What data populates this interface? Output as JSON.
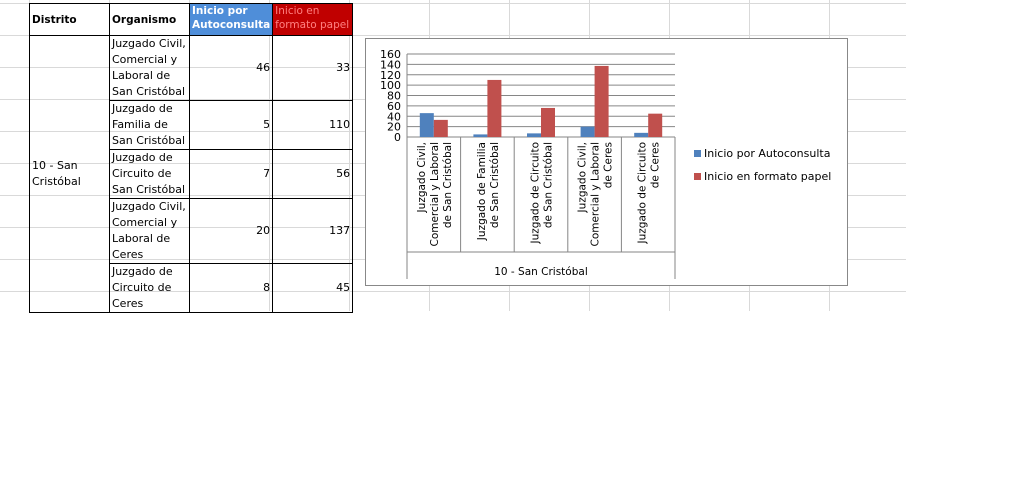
{
  "table": {
    "headers": {
      "distrito": "Distrito",
      "organismo": "Organismo",
      "auto": "Inicio por Autoconsulta",
      "papel": "Inicio en formato papel"
    },
    "distrito_value": "10 - San Cristóbal",
    "rows": [
      {
        "organismo": "Juzgado Civil, Comercial y Laboral de San Cristóbal",
        "auto": "46",
        "papel": "33"
      },
      {
        "organismo": "Juzgado de Familia de San Cristóbal",
        "auto": "5",
        "papel": "110"
      },
      {
        "organismo": "Juzgado de Circuito de San Cristóbal",
        "auto": "7",
        "papel": "56"
      },
      {
        "organismo": "Juzgado Civil, Comercial y Laboral de Ceres",
        "auto": "20",
        "papel": "137"
      },
      {
        "organismo": "Juzgado de Circuito de Ceres",
        "auto": "8",
        "papel": "45"
      }
    ]
  },
  "colors": {
    "auto": "#4f81bd",
    "papel": "#c0504d",
    "header_auto": "#4f8ed9",
    "header_papel": "#c00000"
  },
  "chart_data": {
    "type": "bar",
    "categories": [
      "Juzgado Civil, Comercial y Laboral de San Cristóbal",
      "Juzgado de Familia de San Cristóbal",
      "Juzgado de Circuito de San Cristóbal",
      "Juzgado Civil, Comercial y Laboral de Ceres",
      "Juzgado de Circuito de Ceres"
    ],
    "category_lines": [
      [
        "Juzgado Civil,",
        "Comercial y Laboral",
        "de San Cristóbal"
      ],
      [
        "Juzgado de Familia",
        "de San Cristóbal"
      ],
      [
        "Juzgado de Circuito",
        "de San Cristóbal"
      ],
      [
        "Juzgado Civil,",
        "Comercial y Laboral",
        "de Ceres"
      ],
      [
        "Juzgado de Circuito",
        "de Ceres"
      ]
    ],
    "group_label": "10 - San Cristóbal",
    "series": [
      {
        "name": "Inicio por Autoconsulta",
        "values": [
          46,
          5,
          7,
          20,
          8
        ]
      },
      {
        "name": "Inicio en formato papel",
        "values": [
          33,
          110,
          56,
          137,
          45
        ]
      }
    ],
    "ylim": [
      0,
      160
    ],
    "yticks": [
      0,
      20,
      40,
      60,
      80,
      100,
      120,
      140,
      160
    ],
    "grid": true,
    "legend_position": "right"
  }
}
